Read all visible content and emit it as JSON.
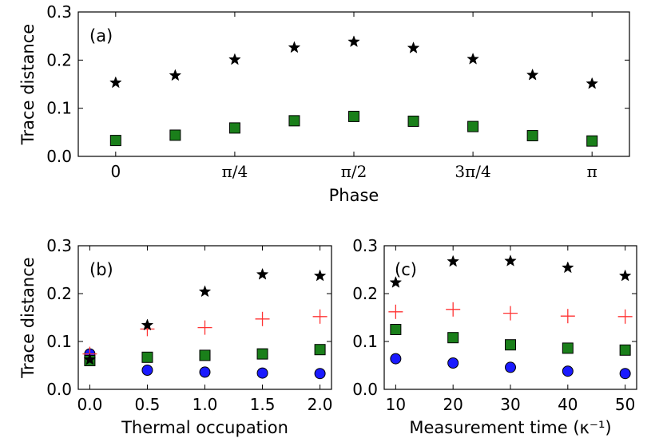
{
  "chart_data": [
    {
      "type": "scatter",
      "panel_label": "(a)",
      "xlabel": "Phase",
      "ylabel": "Trace distance",
      "ylim": [
        0,
        0.3
      ],
      "yticks": [
        "0.0",
        "0.1",
        "0.2",
        "0.3"
      ],
      "xlim": [
        -0.0785,
        1.0785
      ],
      "xtick_values": [
        0,
        0.25,
        0.5,
        0.75,
        1.0
      ],
      "xticks": [
        "0",
        "π/4",
        "π/2",
        "3π/4",
        "π"
      ],
      "series": [
        {
          "name": "stars",
          "marker": "star",
          "color": "#000000",
          "x": [
            0,
            0.125,
            0.25,
            0.375,
            0.5,
            0.625,
            0.75,
            0.875,
            1.0
          ],
          "y": [
            0.153,
            0.168,
            0.201,
            0.226,
            0.238,
            0.225,
            0.202,
            0.169,
            0.151
          ]
        },
        {
          "name": "squares",
          "marker": "square",
          "color": "#1a7f1a",
          "x": [
            0,
            0.125,
            0.25,
            0.375,
            0.5,
            0.625,
            0.75,
            0.875,
            1.0
          ],
          "y": [
            0.033,
            0.044,
            0.059,
            0.074,
            0.083,
            0.073,
            0.062,
            0.043,
            0.032
          ]
        }
      ]
    },
    {
      "type": "scatter",
      "panel_label": "(b)",
      "xlabel": "Thermal occupation",
      "ylabel": "Trace distance",
      "ylim": [
        0,
        0.3
      ],
      "yticks": [
        "0.0",
        "0.1",
        "0.2",
        "0.3"
      ],
      "xlim": [
        -0.1,
        2.1
      ],
      "xtick_values": [
        0,
        0.5,
        1.0,
        1.5,
        2.0
      ],
      "xticks": [
        "0.0",
        "0.5",
        "1.0",
        "1.5",
        "2.0"
      ],
      "series": [
        {
          "name": "circles",
          "marker": "circle",
          "color": "#1a1aff",
          "x": [
            0,
            0.5,
            1.0,
            1.5,
            2.0
          ],
          "y": [
            0.074,
            0.04,
            0.036,
            0.034,
            0.033
          ]
        },
        {
          "name": "plus",
          "marker": "plus",
          "color": "#ff3333",
          "x": [
            0,
            0.5,
            1.0,
            1.5,
            2.0
          ],
          "y": [
            0.074,
            0.126,
            0.129,
            0.147,
            0.152
          ]
        },
        {
          "name": "squares",
          "marker": "square",
          "color": "#1a7f1a",
          "x": [
            0,
            0.5,
            1.0,
            1.5,
            2.0
          ],
          "y": [
            0.06,
            0.067,
            0.071,
            0.074,
            0.083
          ]
        },
        {
          "name": "stars",
          "marker": "star",
          "color": "#000000",
          "x": [
            0,
            0.5,
            1.0,
            1.5,
            2.0
          ],
          "y": [
            0.062,
            0.134,
            0.204,
            0.24,
            0.237
          ]
        }
      ]
    },
    {
      "type": "scatter",
      "panel_label": "(c)",
      "xlabel": "Measurement time (κ⁻¹)",
      "ylabel": "",
      "ylim": [
        0,
        0.3
      ],
      "yticks": [
        "0.0",
        "0.1",
        "0.2",
        "0.3"
      ],
      "xlim": [
        8,
        52
      ],
      "xtick_values": [
        10,
        20,
        30,
        40,
        50
      ],
      "xticks": [
        "10",
        "20",
        "30",
        "40",
        "50"
      ],
      "series": [
        {
          "name": "stars",
          "marker": "star",
          "color": "#000000",
          "x": [
            10,
            20,
            30,
            40,
            50
          ],
          "y": [
            0.223,
            0.267,
            0.268,
            0.254,
            0.237
          ]
        },
        {
          "name": "plus",
          "marker": "plus",
          "color": "#ff3333",
          "x": [
            10,
            20,
            30,
            40,
            50
          ],
          "y": [
            0.162,
            0.167,
            0.159,
            0.153,
            0.152
          ]
        },
        {
          "name": "squares",
          "marker": "square",
          "color": "#1a7f1a",
          "x": [
            10,
            20,
            30,
            40,
            50
          ],
          "y": [
            0.125,
            0.108,
            0.093,
            0.086,
            0.082
          ]
        },
        {
          "name": "circles",
          "marker": "circle",
          "color": "#1a1aff",
          "x": [
            10,
            20,
            30,
            40,
            50
          ],
          "y": [
            0.064,
            0.055,
            0.046,
            0.038,
            0.033
          ]
        }
      ]
    }
  ]
}
